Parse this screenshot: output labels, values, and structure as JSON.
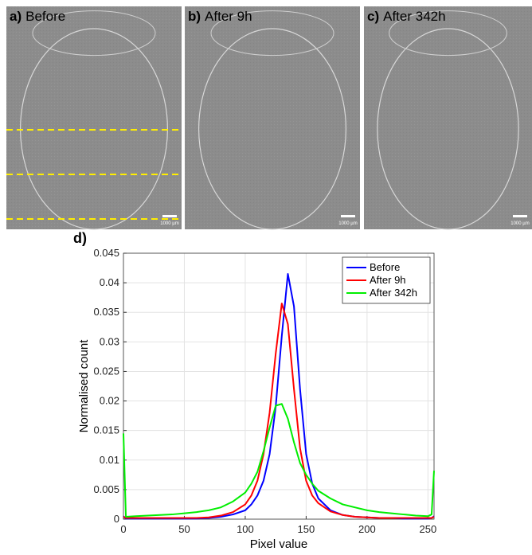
{
  "panels": [
    {
      "label": "a)",
      "title": "Before",
      "scale_bar": "1000 µm"
    },
    {
      "label": "b)",
      "title": "After 9h",
      "scale_bar": "1000 µm"
    },
    {
      "label": "c)",
      "title": "After 342h",
      "scale_bar": "1000 µm"
    }
  ],
  "chart_data": {
    "type": "line",
    "panel_label": "d)",
    "x_label": "Pixel value",
    "y_label": "Normalised count",
    "xlim": [
      0,
      255
    ],
    "xticks": [
      0,
      50,
      100,
      150,
      200,
      250
    ],
    "ylim": [
      0,
      0.045
    ],
    "yticks": [
      0,
      0.005,
      0.01,
      0.015,
      0.02,
      0.025,
      0.03,
      0.035,
      0.04,
      0.045
    ],
    "grid": true,
    "legend": "upper right",
    "x": [
      0,
      2,
      10,
      20,
      30,
      40,
      50,
      60,
      70,
      80,
      90,
      100,
      105,
      110,
      115,
      120,
      125,
      130,
      135,
      140,
      145,
      150,
      155,
      160,
      170,
      180,
      190,
      200,
      210,
      220,
      230,
      240,
      250,
      253,
      255
    ],
    "series": [
      {
        "name": "Before",
        "color": "#0000ff",
        "values": [
          0.0005,
          0.0001,
          0.0001,
          0.0001,
          0.0001,
          0.0001,
          0.0001,
          0.0001,
          0.0002,
          0.0004,
          0.0008,
          0.0015,
          0.0025,
          0.004,
          0.0065,
          0.011,
          0.019,
          0.031,
          0.0415,
          0.036,
          0.022,
          0.011,
          0.006,
          0.0035,
          0.0015,
          0.0007,
          0.0004,
          0.0003,
          0.0002,
          0.0002,
          0.0001,
          0.0001,
          0.0001,
          0.0002,
          0.0005
        ]
      },
      {
        "name": "After 9h",
        "color": "#ff0000",
        "values": [
          0.0004,
          0.0002,
          0.0002,
          0.0002,
          0.0002,
          0.0002,
          0.0002,
          0.0002,
          0.0003,
          0.0006,
          0.0012,
          0.0025,
          0.004,
          0.0065,
          0.011,
          0.018,
          0.028,
          0.0365,
          0.033,
          0.022,
          0.012,
          0.0065,
          0.004,
          0.0027,
          0.0013,
          0.0007,
          0.0004,
          0.0003,
          0.0002,
          0.0002,
          0.0002,
          0.0002,
          0.0002,
          0.0002,
          0.0004
        ]
      },
      {
        "name": "After 342h",
        "color": "#00ee00",
        "values": [
          0.0145,
          0.0004,
          0.0005,
          0.0006,
          0.0007,
          0.0008,
          0.001,
          0.0012,
          0.0015,
          0.002,
          0.003,
          0.0045,
          0.006,
          0.008,
          0.0115,
          0.0155,
          0.0192,
          0.0195,
          0.017,
          0.013,
          0.0095,
          0.0075,
          0.006,
          0.0048,
          0.0035,
          0.0025,
          0.002,
          0.0015,
          0.0012,
          0.001,
          0.0008,
          0.0006,
          0.0005,
          0.0008,
          0.0082
        ]
      }
    ]
  }
}
